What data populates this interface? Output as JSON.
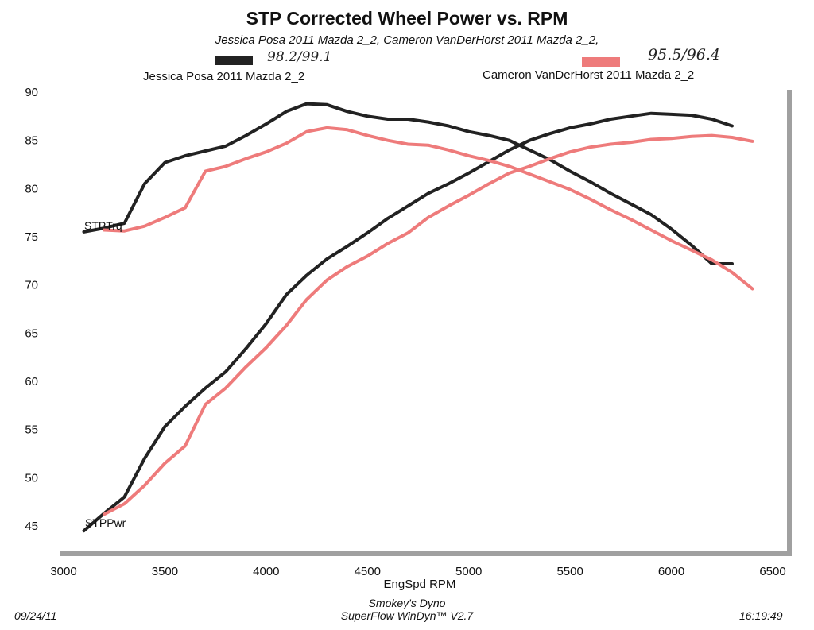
{
  "chart_data": {
    "type": "line",
    "title": "STP Corrected Wheel Power vs. RPM",
    "subtitle": "Jessica Posa 2011 Mazda 2_2, Cameron VanDerHorst 2011 Mazda 2_2,",
    "xlabel": "EngSpd  RPM",
    "ylabel": "",
    "xlim": [
      3000,
      6500
    ],
    "ylim": [
      43.5,
      90
    ],
    "x_ticks": [
      "3000",
      "3500",
      "4000",
      "4500",
      "5000",
      "5500",
      "6000",
      "6500"
    ],
    "y_ticks": [
      "90",
      "85",
      "80",
      "75",
      "70",
      "65",
      "60",
      "55",
      "50",
      "45"
    ],
    "legend_placement": "top",
    "legend": [
      {
        "label": "Jessica Posa 2011 Mazda 2_2",
        "color": "#222222",
        "handwritten_note": "98.2/99.1"
      },
      {
        "label": "Cameron VanDerHorst 2011 Mazda 2_2",
        "color": "#ee7b7b",
        "handwritten_note": "95.5/96.4"
      }
    ],
    "curve_labels": {
      "torque": "STPTrq",
      "power": "STPPwr"
    },
    "series": [
      {
        "vehicle": "Jessica Posa 2011 Mazda 2_2",
        "measure": "STPTrq",
        "color": "#222222",
        "x": [
          3100,
          3200,
          3300,
          3400,
          3500,
          3600,
          3700,
          3800,
          3900,
          4000,
          4100,
          4200,
          4300,
          4400,
          4500,
          4600,
          4700,
          4800,
          4900,
          5000,
          5100,
          5200,
          5300,
          5400,
          5500,
          5600,
          5700,
          5800,
          5900,
          6000,
          6100,
          6200,
          6300
        ],
        "y": [
          75.5,
          75.9,
          76.4,
          80.5,
          82.7,
          83.4,
          83.9,
          84.4,
          85.5,
          86.7,
          88.0,
          88.8,
          88.7,
          88.0,
          87.5,
          87.2,
          87.2,
          86.9,
          86.5,
          85.9,
          85.5,
          85.0,
          84.0,
          83.0,
          81.8,
          80.7,
          79.5,
          78.4,
          77.3,
          75.8,
          74.1,
          72.2,
          72.2
        ]
      },
      {
        "vehicle": "Jessica Posa 2011 Mazda 2_2",
        "measure": "STPPwr",
        "color": "#222222",
        "x": [
          3100,
          3200,
          3300,
          3400,
          3500,
          3600,
          3700,
          3800,
          3900,
          4000,
          4100,
          4200,
          4300,
          4400,
          4500,
          4600,
          4700,
          4800,
          4900,
          5000,
          5100,
          5200,
          5300,
          5400,
          5500,
          5600,
          5700,
          5800,
          5900,
          6000,
          6100,
          6200,
          6300
        ],
        "y": [
          44.5,
          46.3,
          48.0,
          52.0,
          55.3,
          57.4,
          59.3,
          61.0,
          63.4,
          66.0,
          69.0,
          71.0,
          72.7,
          74.0,
          75.4,
          76.9,
          78.2,
          79.5,
          80.5,
          81.6,
          82.8,
          84.0,
          85.0,
          85.7,
          86.3,
          86.7,
          87.2,
          87.5,
          87.8,
          87.7,
          87.6,
          87.2,
          86.5
        ]
      },
      {
        "vehicle": "Cameron VanDerHorst 2011 Mazda 2_2",
        "measure": "STPTrq",
        "color": "#ee7b7b",
        "x": [
          3200,
          3300,
          3400,
          3500,
          3600,
          3700,
          3800,
          3900,
          4000,
          4100,
          4200,
          4300,
          4400,
          4500,
          4600,
          4700,
          4800,
          4900,
          5000,
          5100,
          5200,
          5300,
          5400,
          5500,
          5600,
          5700,
          5800,
          5900,
          6000,
          6100,
          6200,
          6300,
          6400
        ],
        "y": [
          75.7,
          75.6,
          76.1,
          77.0,
          78.0,
          81.8,
          82.3,
          83.1,
          83.8,
          84.7,
          85.9,
          86.3,
          86.1,
          85.5,
          85.0,
          84.6,
          84.5,
          84.0,
          83.4,
          82.9,
          82.3,
          81.5,
          80.7,
          79.9,
          78.9,
          77.8,
          76.8,
          75.7,
          74.6,
          73.6,
          72.6,
          71.3,
          69.6
        ]
      },
      {
        "vehicle": "Cameron VanDerHorst 2011 Mazda 2_2",
        "measure": "STPPwr",
        "color": "#ee7b7b",
        "x": [
          3200,
          3300,
          3400,
          3500,
          3600,
          3700,
          3800,
          3900,
          4000,
          4100,
          4200,
          4300,
          4400,
          4500,
          4600,
          4700,
          4800,
          4900,
          5000,
          5100,
          5200,
          5300,
          5400,
          5500,
          5600,
          5700,
          5800,
          5900,
          6000,
          6100,
          6200,
          6300,
          6400
        ],
        "y": [
          46.2,
          47.3,
          49.2,
          51.5,
          53.3,
          57.6,
          59.3,
          61.5,
          63.5,
          65.8,
          68.5,
          70.5,
          71.9,
          73.0,
          74.3,
          75.4,
          77.0,
          78.2,
          79.3,
          80.5,
          81.6,
          82.3,
          83.1,
          83.8,
          84.3,
          84.6,
          84.8,
          85.1,
          85.2,
          85.4,
          85.5,
          85.3,
          84.9
        ]
      }
    ]
  },
  "footer": {
    "date": "09/24/11",
    "shop": "Smokey's Dyno",
    "software": "SuperFlow WinDyn™ V2.7",
    "time": "16:19:49"
  }
}
